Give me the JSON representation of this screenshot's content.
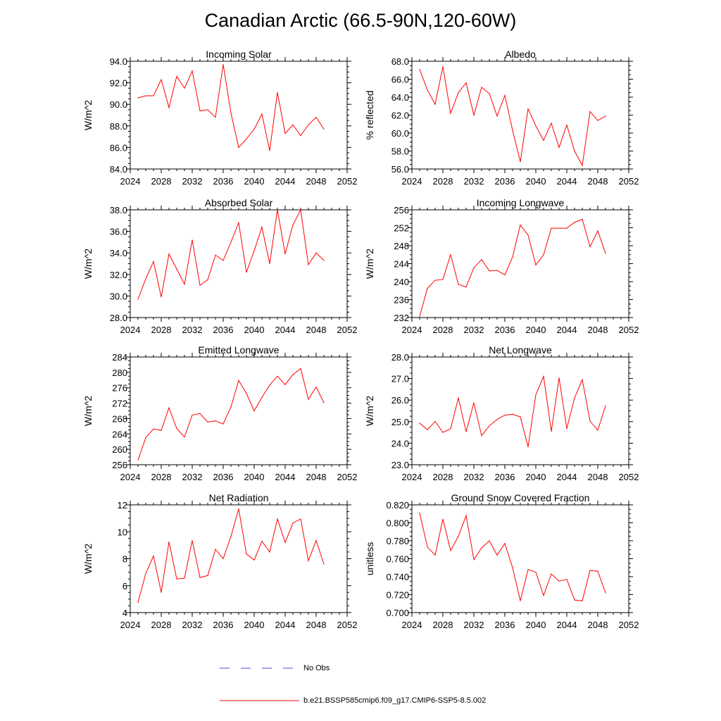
{
  "title": "Canadian Arctic (66.5-90N,120-60W)",
  "colors": {
    "model": "#ff0000",
    "obs": "#4d4dcc",
    "axis": "#000000"
  },
  "legend": {
    "obs_label": "No Obs",
    "model_label": "b.e21.BSSP585cmip6.f09_g17.CMIP6-SSP5-8.5.002"
  },
  "chart_data": [
    {
      "type": "line",
      "title": "Incoming Solar",
      "ylabel": "W/m^2",
      "xlim": [
        2024,
        2052
      ],
      "xticks": [
        "2024",
        "2028",
        "2032",
        "2036",
        "2040",
        "2044",
        "2048",
        "2052"
      ],
      "ylim": [
        84,
        94
      ],
      "yticks": [
        "84.0",
        "86.0",
        "88.0",
        "90.0",
        "92.0",
        "94.0"
      ],
      "x": [
        2025,
        2026,
        2027,
        2028,
        2029,
        2030,
        2031,
        2032,
        2033,
        2034,
        2035,
        2036,
        2037,
        2038,
        2039,
        2040,
        2041,
        2042,
        2043,
        2044,
        2045,
        2046,
        2047,
        2048,
        2049
      ],
      "series": [
        {
          "name": "b.e21.BSSP585cmip6.f09_g17.CMIP6-SSP5-8.5.002",
          "values": [
            90.6,
            90.8,
            90.8,
            92.3,
            89.7,
            92.6,
            91.5,
            93.1,
            89.4,
            89.5,
            88.8,
            93.7,
            89.2,
            86.0,
            86.8,
            87.7,
            89.1,
            85.7,
            91.1,
            87.3,
            88.1,
            87.1,
            88.1,
            88.8,
            87.7
          ]
        }
      ]
    },
    {
      "type": "line",
      "title": "Albedo",
      "ylabel": "% reflected",
      "xlim": [
        2024,
        2052
      ],
      "xticks": [
        "2024",
        "2028",
        "2032",
        "2036",
        "2040",
        "2044",
        "2048",
        "2052"
      ],
      "ylim": [
        56,
        68
      ],
      "yticks": [
        "56.0",
        "58.0",
        "60.0",
        "62.0",
        "64.0",
        "66.0",
        "68.0"
      ],
      "x": [
        2025,
        2026,
        2027,
        2028,
        2029,
        2030,
        2031,
        2032,
        2033,
        2034,
        2035,
        2036,
        2037,
        2038,
        2039,
        2040,
        2041,
        2042,
        2043,
        2044,
        2045,
        2046,
        2047,
        2048,
        2049
      ],
      "series": [
        {
          "name": "b.e21.BSSP585cmip6.f09_g17.CMIP6-SSP5-8.5.002",
          "values": [
            67.1,
            64.8,
            63.2,
            67.4,
            62.2,
            64.5,
            65.6,
            62.0,
            65.1,
            64.4,
            61.9,
            64.2,
            60.3,
            56.8,
            62.7,
            60.8,
            59.2,
            61.1,
            58.4,
            60.9,
            58.0,
            56.4,
            62.4,
            61.4,
            61.9
          ]
        }
      ]
    },
    {
      "type": "line",
      "title": "Absorbed Solar",
      "ylabel": "W/m^2",
      "xlim": [
        2024,
        2052
      ],
      "xticks": [
        "2024",
        "2028",
        "2032",
        "2036",
        "2040",
        "2044",
        "2048",
        "2052"
      ],
      "ylim": [
        28,
        38
      ],
      "yticks": [
        "28.0",
        "30.0",
        "32.0",
        "34.0",
        "36.0",
        "38.0"
      ],
      "x": [
        2025,
        2026,
        2027,
        2028,
        2029,
        2030,
        2031,
        2032,
        2033,
        2034,
        2035,
        2036,
        2037,
        2038,
        2039,
        2040,
        2041,
        2042,
        2043,
        2044,
        2045,
        2046,
        2047,
        2048,
        2049
      ],
      "series": [
        {
          "name": "b.e21.BSSP585cmip6.f09_g17.CMIP6-SSP5-8.5.002",
          "values": [
            29.7,
            31.6,
            33.2,
            29.9,
            33.9,
            32.5,
            31.1,
            35.2,
            31.0,
            31.5,
            33.8,
            33.3,
            35.0,
            36.8,
            32.2,
            34.2,
            36.4,
            33.0,
            38.0,
            33.9,
            36.6,
            38.0,
            32.9,
            34.0,
            33.3
          ]
        }
      ]
    },
    {
      "type": "line",
      "title": "Incoming Longwave",
      "ylabel": "W/m^2",
      "xlim": [
        2024,
        2052
      ],
      "xticks": [
        "2024",
        "2028",
        "2032",
        "2036",
        "2040",
        "2044",
        "2048",
        "2052"
      ],
      "ylim": [
        232,
        256
      ],
      "yticks": [
        "232",
        "236",
        "240",
        "244",
        "248",
        "252",
        "256"
      ],
      "x": [
        2025,
        2026,
        2027,
        2028,
        2029,
        2030,
        2031,
        2032,
        2033,
        2034,
        2035,
        2036,
        2037,
        2038,
        2039,
        2040,
        2041,
        2042,
        2043,
        2044,
        2045,
        2046,
        2047,
        2048,
        2049
      ],
      "series": [
        {
          "name": "b.e21.BSSP585cmip6.f09_g17.CMIP6-SSP5-8.5.002",
          "values": [
            232.3,
            238.5,
            240.3,
            240.5,
            246.0,
            239.4,
            238.8,
            243.1,
            244.9,
            242.4,
            242.5,
            241.5,
            245.5,
            252.6,
            250.4,
            243.7,
            246.0,
            251.9,
            251.9,
            251.9,
            253.2,
            253.9,
            247.8,
            251.3,
            246.3
          ]
        }
      ]
    },
    {
      "type": "line",
      "title": "Emitted Longwave",
      "ylabel": "W/m^2",
      "xlim": [
        2024,
        2052
      ],
      "xticks": [
        "2024",
        "2028",
        "2032",
        "2036",
        "2040",
        "2044",
        "2048",
        "2052"
      ],
      "ylim": [
        256,
        284
      ],
      "yticks": [
        "256",
        "260",
        "264",
        "268",
        "272",
        "276",
        "280",
        "284"
      ],
      "x": [
        2025,
        2026,
        2027,
        2028,
        2029,
        2030,
        2031,
        2032,
        2033,
        2034,
        2035,
        2036,
        2037,
        2038,
        2039,
        2040,
        2041,
        2042,
        2043,
        2044,
        2045,
        2046,
        2047,
        2048,
        2049
      ],
      "series": [
        {
          "name": "b.e21.BSSP585cmip6.f09_g17.CMIP6-SSP5-8.5.002",
          "values": [
            257.2,
            263.0,
            265.3,
            264.9,
            270.8,
            265.4,
            263.2,
            268.9,
            269.3,
            267.1,
            267.4,
            266.6,
            271.0,
            277.9,
            274.5,
            270.0,
            273.5,
            276.7,
            279.0,
            276.8,
            279.4,
            281.0,
            273.0,
            276.2,
            272.1
          ]
        }
      ]
    },
    {
      "type": "line",
      "title": "Net Longwave",
      "ylabel": "W/m^2",
      "xlim": [
        2024,
        2052
      ],
      "xticks": [
        "2024",
        "2028",
        "2032",
        "2036",
        "2040",
        "2044",
        "2048",
        "2052"
      ],
      "ylim": [
        23,
        28
      ],
      "yticks": [
        "23.0",
        "24.0",
        "25.0",
        "26.0",
        "27.0",
        "28.0"
      ],
      "x": [
        2025,
        2026,
        2027,
        2028,
        2029,
        2030,
        2031,
        2032,
        2033,
        2034,
        2035,
        2036,
        2037,
        2038,
        2039,
        2040,
        2041,
        2042,
        2043,
        2044,
        2045,
        2046,
        2047,
        2048,
        2049
      ],
      "series": [
        {
          "name": "b.e21.BSSP585cmip6.f09_g17.CMIP6-SSP5-8.5.002",
          "values": [
            24.93,
            24.62,
            25.01,
            24.5,
            24.67,
            26.1,
            24.53,
            25.87,
            24.35,
            24.8,
            25.1,
            25.3,
            25.34,
            25.22,
            23.83,
            26.25,
            27.1,
            24.55,
            27.03,
            24.68,
            26.1,
            26.95,
            25.02,
            24.6,
            25.73
          ]
        }
      ]
    },
    {
      "type": "line",
      "title": "Net Radiation",
      "ylabel": "W/m^2",
      "xlim": [
        2024,
        2052
      ],
      "xticks": [
        "2024",
        "2028",
        "2032",
        "2036",
        "2040",
        "2044",
        "2048",
        "2052"
      ],
      "ylim": [
        4,
        12
      ],
      "yticks": [
        "4",
        "6",
        "8",
        "10",
        "12"
      ],
      "x": [
        2025,
        2026,
        2027,
        2028,
        2029,
        2030,
        2031,
        2032,
        2033,
        2034,
        2035,
        2036,
        2037,
        2038,
        2039,
        2040,
        2041,
        2042,
        2043,
        2044,
        2045,
        2046,
        2047,
        2048,
        2049
      ],
      "series": [
        {
          "name": "b.e21.BSSP585cmip6.f09_g17.CMIP6-SSP5-8.5.002",
          "values": [
            4.75,
            6.9,
            8.2,
            5.5,
            9.25,
            6.5,
            6.55,
            9.35,
            6.6,
            6.75,
            8.7,
            8.0,
            9.65,
            11.7,
            8.35,
            7.9,
            9.3,
            8.5,
            10.95,
            9.2,
            10.65,
            10.95,
            7.85,
            9.35,
            7.6
          ]
        }
      ]
    },
    {
      "type": "line",
      "title": "Ground Snow Covered Fraction",
      "ylabel": "unitless",
      "xlim": [
        2024,
        2052
      ],
      "xticks": [
        "2024",
        "2028",
        "2032",
        "2036",
        "2040",
        "2044",
        "2048",
        "2052"
      ],
      "ylim": [
        0.7,
        0.82
      ],
      "yticks": [
        "0.700",
        "0.720",
        "0.740",
        "0.760",
        "0.780",
        "0.800",
        "0.820"
      ],
      "x": [
        2025,
        2026,
        2027,
        2028,
        2029,
        2030,
        2031,
        2032,
        2033,
        2034,
        2035,
        2036,
        2037,
        2038,
        2039,
        2040,
        2041,
        2042,
        2043,
        2044,
        2045,
        2046,
        2047,
        2048,
        2049
      ],
      "series": [
        {
          "name": "b.e21.BSSP585cmip6.f09_g17.CMIP6-SSP5-8.5.002",
          "values": [
            0.811,
            0.773,
            0.764,
            0.804,
            0.769,
            0.785,
            0.808,
            0.759,
            0.772,
            0.78,
            0.764,
            0.777,
            0.75,
            0.713,
            0.748,
            0.745,
            0.719,
            0.743,
            0.735,
            0.737,
            0.714,
            0.713,
            0.747,
            0.746,
            0.722
          ]
        }
      ]
    }
  ]
}
